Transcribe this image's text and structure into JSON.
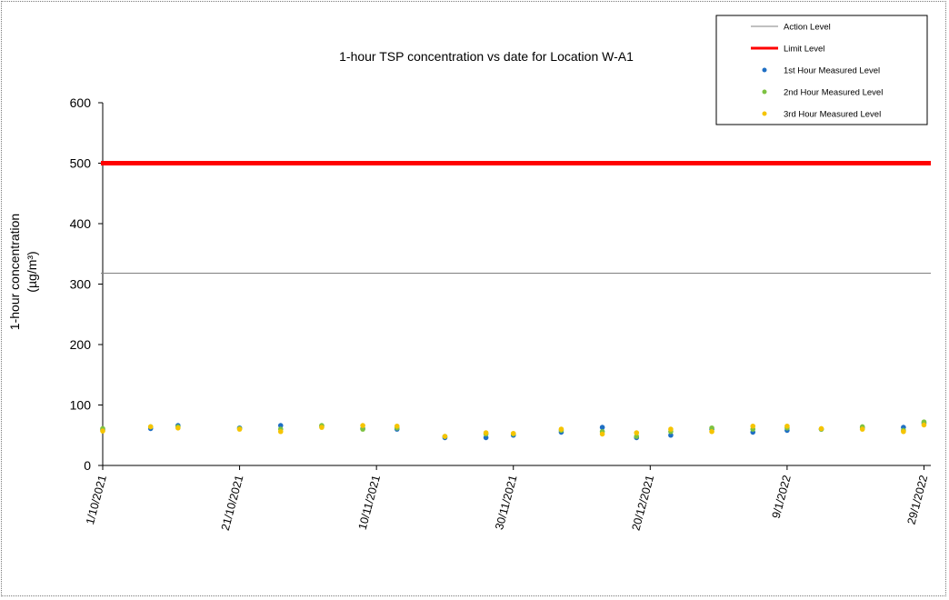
{
  "chart_data": {
    "type": "scatter",
    "title": "1-hour TSP concentration vs date for Location W-A1",
    "ylabel_line1": "1-hour concentration",
    "ylabel_line2": "(µg/m³)",
    "xlabel": "",
    "ylim": [
      0,
      600
    ],
    "yticks": [
      0,
      100,
      200,
      300,
      400,
      500,
      600
    ],
    "xlim": [
      "2021-10-01",
      "2022-01-30"
    ],
    "xticks": [
      "2021-10-01",
      "2021-10-21",
      "2021-11-10",
      "2021-11-30",
      "2021-12-20",
      "2022-01-09",
      "2022-01-29"
    ],
    "xtick_labels": [
      "1/10/2021",
      "21/10/2021",
      "10/11/2021",
      "30/11/2021",
      "20/12/2021",
      "9/1/2022",
      "29/1/2022"
    ],
    "grid": false,
    "legend_position": "top-right",
    "reference_lines": [
      {
        "name": "Action Level",
        "value": 318,
        "color": "#808080"
      },
      {
        "name": "Limit Level",
        "value": 500,
        "color": "#ff0000"
      }
    ],
    "x": [
      "2021-10-01",
      "2021-10-08",
      "2021-10-12",
      "2021-10-21",
      "2021-10-27",
      "2021-11-02",
      "2021-11-08",
      "2021-11-13",
      "2021-11-20",
      "2021-11-26",
      "2021-11-30",
      "2021-12-07",
      "2021-12-13",
      "2021-12-18",
      "2021-12-23",
      "2021-12-29",
      "2022-01-04",
      "2022-01-09",
      "2022-01-14",
      "2022-01-20",
      "2022-01-26",
      "2022-01-29"
    ],
    "series": [
      {
        "name": "1st Hour Measured Level",
        "color": "#1f6fc4",
        "values": [
          59,
          61,
          66,
          62,
          66,
          65,
          61,
          60,
          46,
          46,
          50,
          55,
          63,
          46,
          50,
          60,
          55,
          58,
          60,
          62,
          63,
          70
        ]
      },
      {
        "name": "2nd Hour Measured Level",
        "color": "#7dc242",
        "values": [
          61,
          64,
          64,
          61,
          60,
          66,
          60,
          62,
          48,
          52,
          52,
          58,
          56,
          48,
          56,
          62,
          60,
          62,
          60,
          64,
          58,
          72
        ]
      },
      {
        "name": "3rd Hour Measured Level",
        "color": "#f5c400",
        "values": [
          57,
          64,
          62,
          60,
          56,
          63,
          66,
          65,
          48,
          54,
          53,
          60,
          52,
          54,
          60,
          56,
          65,
          65,
          61,
          60,
          56,
          67
        ]
      }
    ]
  }
}
